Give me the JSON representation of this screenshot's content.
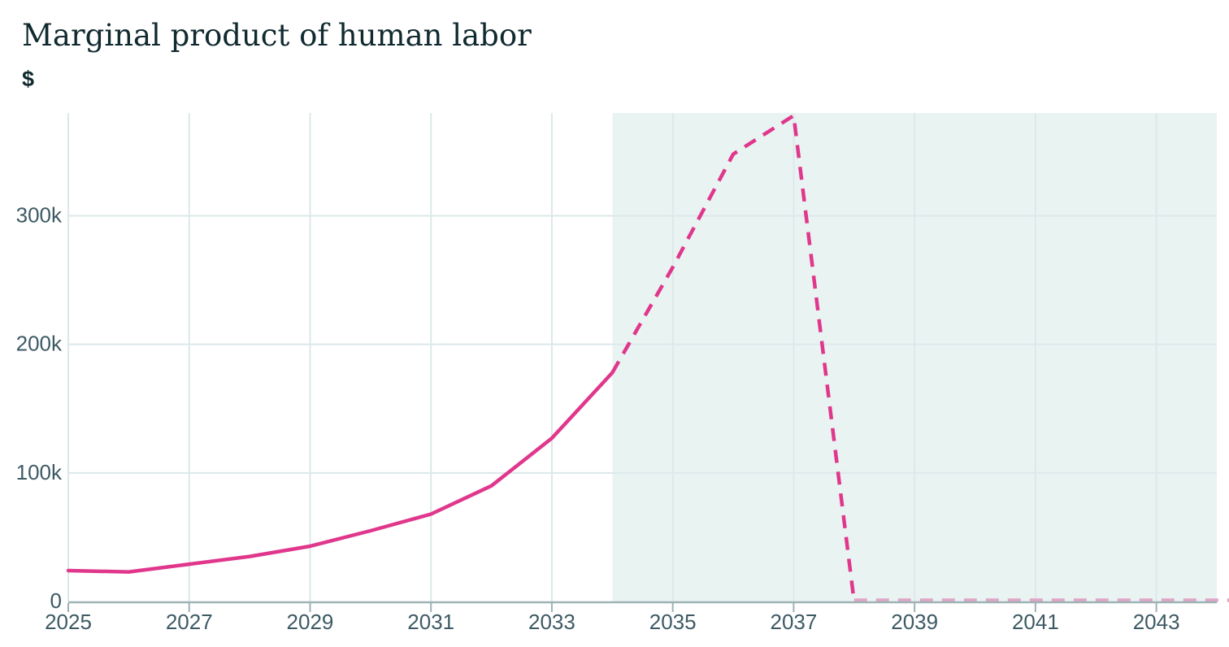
{
  "header": {
    "title": "Marginal product of human labor",
    "unit_label": "$"
  },
  "colors": {
    "background": "#ffffff",
    "title_text": "#102a2f",
    "tick_text": "#3d5a64",
    "accent_line": "#e0378c",
    "accent_line_faded": "#dfa6c7",
    "forecast_shade": "#e9f4f2",
    "gridline": "#dce8ea",
    "axis": "#9fb2b6"
  },
  "chart_data": {
    "type": "line",
    "title": "Marginal product of human labor",
    "xlabel": "",
    "ylabel": "$",
    "x": [
      2025,
      2026,
      2027,
      2028,
      2029,
      2030,
      2031,
      2032,
      2033,
      2034,
      2035,
      2036,
      2037,
      2038,
      2039,
      2040,
      2041,
      2042,
      2043,
      2044
    ],
    "series": [
      {
        "name": "Marginal product of human labor ($)",
        "values": [
          24000,
          23000,
          29000,
          35000,
          43000,
          55000,
          68000,
          90000,
          127000,
          178000,
          260000,
          348000,
          378000,
          0,
          0,
          0,
          0,
          0,
          0,
          0
        ]
      }
    ],
    "solid_until": 2034,
    "forecast_region": {
      "start": 2034,
      "end": 2044,
      "style": "shaded"
    },
    "line_style": {
      "solid": "2025-2034 observed",
      "dashed": "2034-2044 forecast"
    },
    "peak": {
      "year": 2037,
      "value": 378000
    },
    "x_ticks": [
      2025,
      2027,
      2029,
      2031,
      2033,
      2035,
      2037,
      2039,
      2041,
      2043
    ],
    "y_ticks": [
      {
        "value": 0,
        "label": "0"
      },
      {
        "value": 100000,
        "label": "100k"
      },
      {
        "value": 200000,
        "label": "200k"
      },
      {
        "value": 300000,
        "label": "300k"
      }
    ],
    "xlim": [
      2025,
      2044
    ],
    "ylim": [
      0,
      380000
    ],
    "grid": true,
    "legend": "none"
  }
}
